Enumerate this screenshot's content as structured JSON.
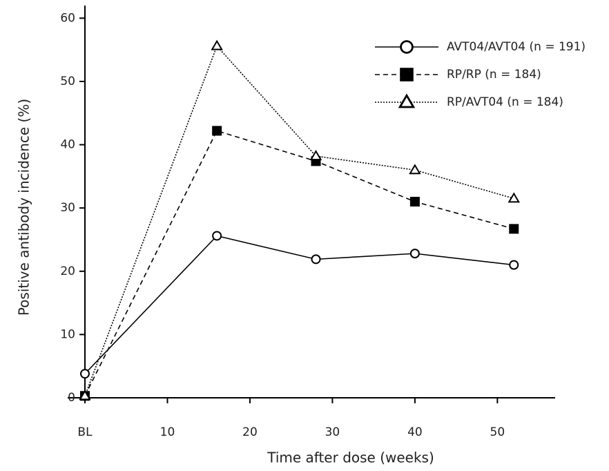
{
  "chart_data": {
    "type": "line",
    "x_label": "Time after dose (weeks)",
    "y_label": "Positive antibody incidence (%)",
    "x": [
      0,
      16,
      28,
      40,
      52
    ],
    "xlim": [
      0,
      57
    ],
    "xticks": [
      {
        "value": 0,
        "label": "BL"
      },
      10,
      20,
      30,
      40,
      50
    ],
    "ylim": [
      0,
      62
    ],
    "yticks": [
      0,
      10,
      20,
      30,
      40,
      50,
      60
    ],
    "legend": "upper right",
    "series": [
      {
        "name": "AVT04/AVT04 (n = 191)",
        "color": "#000000",
        "marker": "circle",
        "dash": "solid",
        "values": [
          3.8,
          25.6,
          21.9,
          22.8,
          21.0
        ]
      },
      {
        "name": "RP/RP (n = 184)",
        "color": "#000000",
        "marker": "square",
        "dash": "dashed",
        "values": [
          0.3,
          42.2,
          37.4,
          31.0,
          26.7
        ]
      },
      {
        "name": "RP/AVT04 (n = 184)",
        "color": "#000000",
        "marker": "triangle",
        "dash": "dotted",
        "values": [
          0.3,
          55.6,
          38.2,
          36.0,
          31.5
        ]
      }
    ]
  }
}
